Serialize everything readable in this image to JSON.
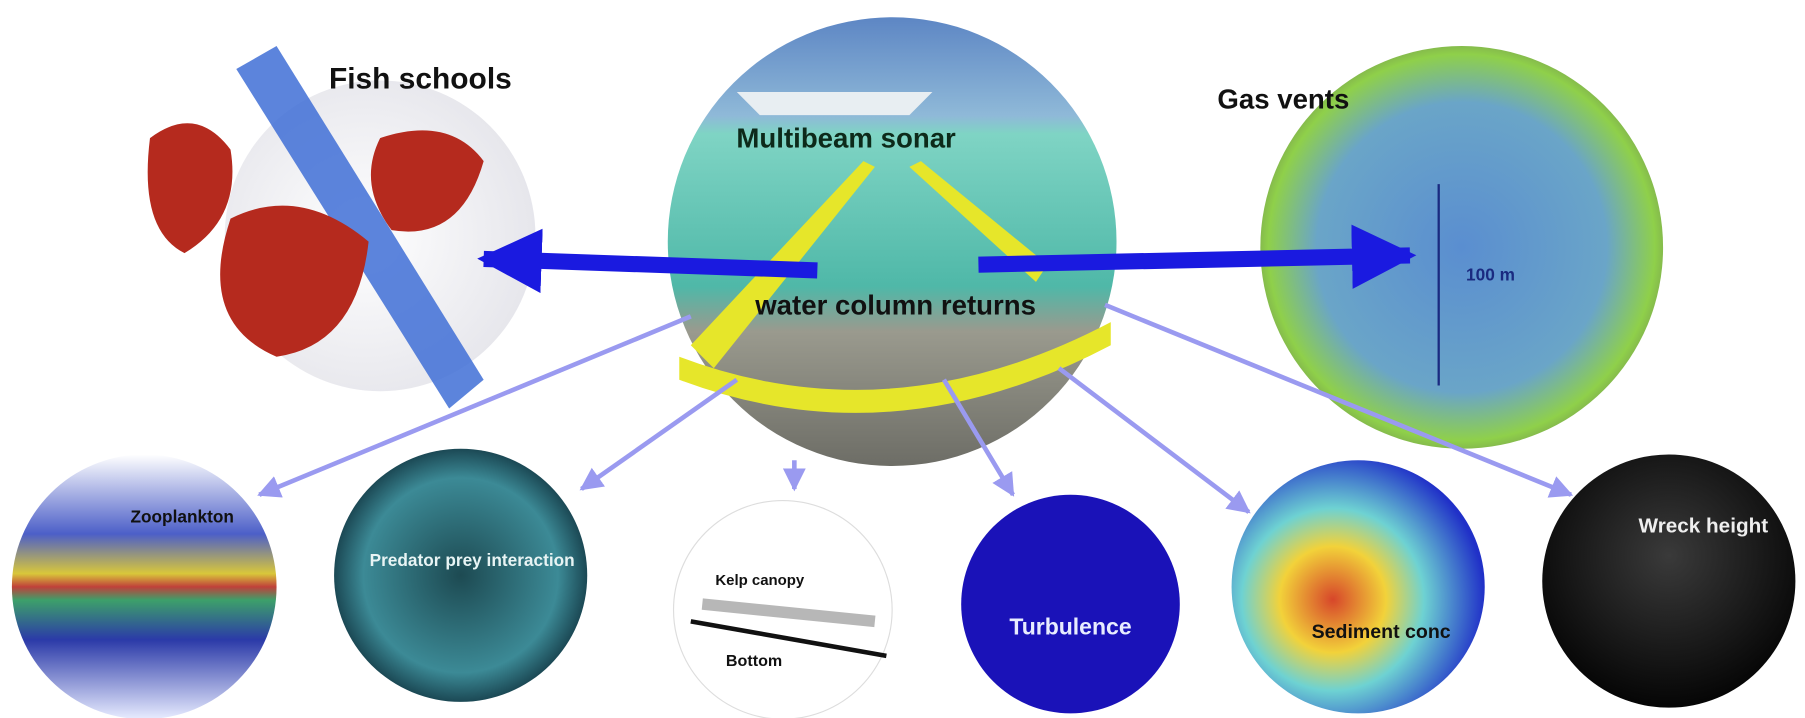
{
  "center": {
    "title": "Multibeam sonar",
    "subtitle": "water column returns"
  },
  "nodes": [
    {
      "label": "Fish schools"
    },
    {
      "label": "Gas vents",
      "annotation": "100 m"
    },
    {
      "label": "Zooplankton"
    },
    {
      "label": "Predator prey interaction"
    },
    {
      "label": "Kelp canopy",
      "sublabel": "Bottom"
    },
    {
      "label": "Turbulence"
    },
    {
      "label": "Sediment conc"
    },
    {
      "label": "Wreck height"
    }
  ]
}
